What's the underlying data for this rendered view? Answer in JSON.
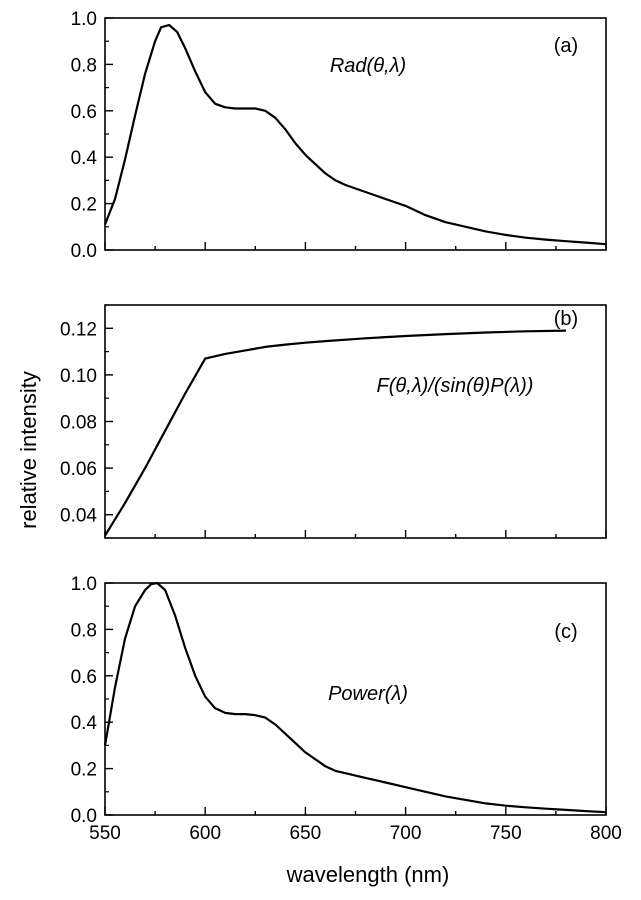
{
  "figure": {
    "xlabel": "wavelength (nm)",
    "ylabel": "relative intensity"
  },
  "chart_data": [
    {
      "type": "line",
      "panel_label": "(a)",
      "annotation": "Rad(θ,λ)",
      "xlim": [
        550,
        800
      ],
      "ylim": [
        0.0,
        1.0
      ],
      "x_ticks": [
        550,
        600,
        650,
        700,
        750,
        800
      ],
      "y_ticks": [
        0.0,
        0.2,
        0.4,
        0.6,
        0.8,
        1.0
      ],
      "y_tick_labels": [
        "0.0",
        "0.2",
        "0.4",
        "0.6",
        "0.8",
        "1.0"
      ],
      "series": [
        {
          "x": [
            550,
            555,
            560,
            565,
            570,
            575,
            578,
            582,
            586,
            590,
            595,
            600,
            605,
            610,
            615,
            620,
            625,
            630,
            635,
            640,
            645,
            650,
            655,
            660,
            665,
            670,
            680,
            690,
            700,
            710,
            720,
            730,
            740,
            750,
            760,
            770,
            780,
            790,
            800
          ],
          "y": [
            0.11,
            0.22,
            0.39,
            0.58,
            0.76,
            0.9,
            0.96,
            0.97,
            0.94,
            0.87,
            0.77,
            0.68,
            0.63,
            0.615,
            0.61,
            0.61,
            0.61,
            0.6,
            0.57,
            0.52,
            0.46,
            0.41,
            0.37,
            0.33,
            0.3,
            0.28,
            0.25,
            0.22,
            0.19,
            0.15,
            0.12,
            0.1,
            0.08,
            0.065,
            0.053,
            0.045,
            0.038,
            0.032,
            0.025
          ]
        }
      ]
    },
    {
      "type": "line",
      "panel_label": "(b)",
      "annotation": "F(θ,λ)/(sin(θ)P(λ))",
      "xlim": [
        550,
        800
      ],
      "ylim": [
        0.03,
        0.13
      ],
      "x_ticks": [
        550,
        600,
        650,
        700,
        750,
        800
      ],
      "y_ticks": [
        0.04,
        0.06,
        0.08,
        0.1,
        0.12
      ],
      "y_tick_labels": [
        "0.04",
        "0.06",
        "0.08",
        "0.10",
        "0.12"
      ],
      "series": [
        {
          "x": [
            550,
            560,
            570,
            580,
            590,
            600,
            610,
            620,
            630,
            640,
            650,
            660,
            680,
            700,
            720,
            740,
            760,
            780
          ],
          "y": [
            0.031,
            0.045,
            0.06,
            0.076,
            0.092,
            0.107,
            0.109,
            0.1105,
            0.112,
            0.113,
            0.1138,
            0.1145,
            0.1157,
            0.1167,
            0.1175,
            0.1182,
            0.1187,
            0.119
          ]
        }
      ]
    },
    {
      "type": "line",
      "panel_label": "(c)",
      "annotation": "Power(λ)",
      "xlim": [
        550,
        800
      ],
      "ylim": [
        0.0,
        1.0
      ],
      "x_ticks": [
        550,
        600,
        650,
        700,
        750,
        800
      ],
      "x_tick_labels": [
        "550",
        "600",
        "650",
        "700",
        "750",
        "800"
      ],
      "y_ticks": [
        0.0,
        0.2,
        0.4,
        0.6,
        0.8,
        1.0
      ],
      "y_tick_labels": [
        "0.0",
        "0.2",
        "0.4",
        "0.6",
        "0.8",
        "1.0"
      ],
      "series": [
        {
          "x": [
            550,
            555,
            560,
            565,
            570,
            573,
            576,
            580,
            585,
            590,
            595,
            600,
            605,
            610,
            615,
            620,
            625,
            630,
            635,
            640,
            645,
            650,
            655,
            660,
            665,
            670,
            680,
            690,
            700,
            710,
            720,
            730,
            740,
            750,
            760,
            770,
            780,
            790,
            800
          ],
          "y": [
            0.3,
            0.55,
            0.76,
            0.9,
            0.97,
            0.995,
            1.0,
            0.97,
            0.86,
            0.72,
            0.6,
            0.51,
            0.46,
            0.44,
            0.435,
            0.435,
            0.43,
            0.42,
            0.39,
            0.35,
            0.31,
            0.27,
            0.24,
            0.21,
            0.19,
            0.18,
            0.16,
            0.14,
            0.12,
            0.1,
            0.08,
            0.065,
            0.05,
            0.04,
            0.033,
            0.027,
            0.022,
            0.017,
            0.012
          ]
        }
      ]
    }
  ]
}
